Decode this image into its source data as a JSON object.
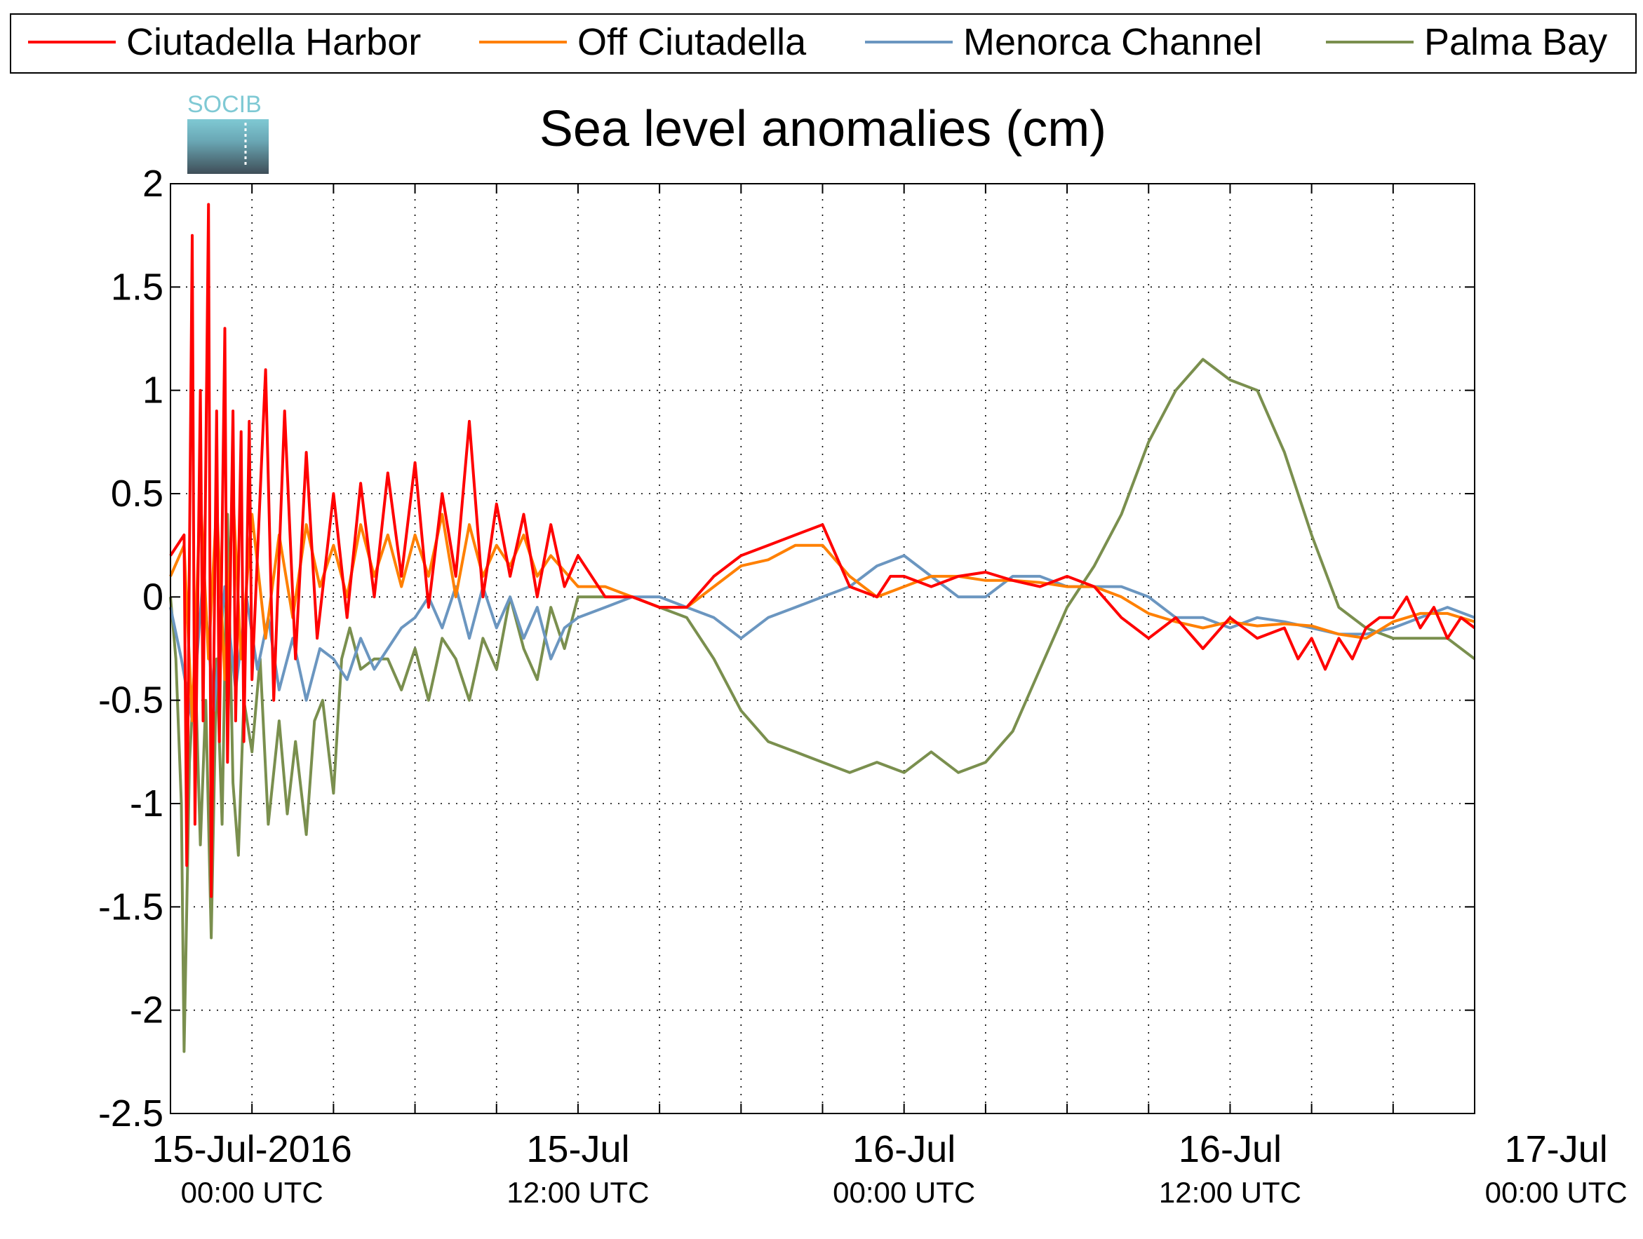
{
  "chart_data": {
    "type": "line",
    "title": "Sea level anomalies (cm)",
    "logo_text": "SOCIB",
    "xlabel": "",
    "ylabel": "",
    "xlim_hours": [
      -3,
      45
    ],
    "ylim": [
      -2.5,
      2
    ],
    "yticks": [
      -2.5,
      -2,
      -1.5,
      -1,
      -0.5,
      0,
      0.5,
      1,
      1.5,
      2
    ],
    "ytick_labels": [
      "-2.5",
      "-2",
      "-1.5",
      "-1",
      "-0.5",
      "0",
      "0.5",
      "1",
      "1.5",
      "2"
    ],
    "xticks_hours": [
      -3,
      0,
      3,
      6,
      9,
      12,
      15,
      18,
      21,
      24,
      27,
      30,
      33,
      36,
      39,
      42,
      45
    ],
    "xtick_labels": [
      {
        "hour": 0,
        "date": "15-Jul-2016",
        "time": "00:00 UTC"
      },
      {
        "hour": 12,
        "date": "15-Jul",
        "time": "12:00 UTC"
      },
      {
        "hour": 24,
        "date": "16-Jul",
        "time": "00:00 UTC"
      },
      {
        "hour": 36,
        "date": "16-Jul",
        "time": "12:00 UTC"
      },
      {
        "hour": 48,
        "date": "17-Jul",
        "time": "00:00 UTC"
      }
    ],
    "grid": true,
    "legend_position": "top",
    "series": [
      {
        "name": "Ciutadella Harbor",
        "color": "#ff0000",
        "x": [
          -3,
          -2.5,
          -2.4,
          -2.2,
          -2.1,
          -1.9,
          -1.8,
          -1.6,
          -1.5,
          -1.3,
          -1.2,
          -1.0,
          -0.9,
          -0.7,
          -0.6,
          -0.4,
          -0.3,
          -0.1,
          0,
          0.5,
          0.8,
          1.2,
          1.6,
          2.0,
          2.4,
          3,
          3.5,
          4,
          4.5,
          5,
          5.5,
          6,
          6.5,
          7,
          7.5,
          8,
          8.5,
          9,
          9.5,
          10,
          10.5,
          11,
          11.5,
          12,
          13,
          14,
          15,
          16,
          17,
          18,
          19,
          20,
          21,
          22,
          23,
          23.5,
          24,
          25,
          26,
          27,
          28,
          29,
          30,
          31,
          32,
          33,
          34,
          35,
          36,
          37,
          38,
          38.5,
          39,
          39.5,
          40,
          40.5,
          41,
          41.5,
          42,
          42.5,
          43,
          43.5,
          44,
          44.5,
          45
        ],
        "values": [
          0.2,
          0.3,
          -1.3,
          1.75,
          -1.1,
          1.0,
          -0.6,
          1.9,
          -1.45,
          0.9,
          -0.7,
          1.3,
          -0.8,
          0.9,
          -0.6,
          0.8,
          -0.7,
          0.85,
          -0.4,
          1.1,
          -0.5,
          0.9,
          -0.3,
          0.7,
          -0.2,
          0.5,
          -0.1,
          0.55,
          0.0,
          0.6,
          0.1,
          0.65,
          -0.05,
          0.5,
          0.1,
          0.85,
          0.0,
          0.45,
          0.1,
          0.4,
          0.0,
          0.35,
          0.05,
          0.2,
          0.0,
          0.0,
          -0.05,
          -0.05,
          0.1,
          0.2,
          0.25,
          0.3,
          0.35,
          0.05,
          0.0,
          0.1,
          0.1,
          0.05,
          0.1,
          0.12,
          0.08,
          0.05,
          0.1,
          0.05,
          -0.1,
          -0.2,
          -0.1,
          -0.25,
          -0.1,
          -0.2,
          -0.15,
          -0.3,
          -0.2,
          -0.35,
          -0.2,
          -0.3,
          -0.15,
          -0.1,
          -0.1,
          0.0,
          -0.15,
          -0.05,
          -0.2,
          -0.1,
          -0.15
        ]
      },
      {
        "name": "Off Ciutadella",
        "color": "#ff8000",
        "x": [
          -3,
          -2.5,
          -2.2,
          -1.9,
          -1.6,
          -1.3,
          -1.0,
          -0.7,
          -0.4,
          0,
          0.5,
          1,
          1.5,
          2,
          2.5,
          3,
          3.5,
          4,
          4.5,
          5,
          5.5,
          6,
          6.5,
          7,
          7.5,
          8,
          8.5,
          9,
          9.5,
          10,
          10.5,
          11,
          12,
          13,
          14,
          15,
          16,
          17,
          18,
          19,
          20,
          21,
          22,
          23,
          24,
          25,
          26,
          27,
          28,
          29,
          30,
          31,
          32,
          33,
          34,
          35,
          36,
          37,
          38,
          39,
          40,
          41,
          42,
          43,
          44,
          45
        ],
        "values": [
          0.1,
          0.25,
          -0.6,
          0.5,
          -0.3,
          0.45,
          -0.4,
          0.5,
          -0.3,
          0.4,
          -0.2,
          0.3,
          -0.1,
          0.35,
          0.05,
          0.25,
          0.0,
          0.35,
          0.1,
          0.3,
          0.05,
          0.3,
          0.1,
          0.4,
          0.0,
          0.35,
          0.1,
          0.25,
          0.15,
          0.3,
          0.1,
          0.2,
          0.05,
          0.05,
          0.0,
          -0.05,
          -0.05,
          0.05,
          0.15,
          0.18,
          0.25,
          0.25,
          0.1,
          0.0,
          0.05,
          0.1,
          0.1,
          0.08,
          0.08,
          0.07,
          0.05,
          0.05,
          0.0,
          -0.08,
          -0.12,
          -0.15,
          -0.12,
          -0.14,
          -0.13,
          -0.14,
          -0.18,
          -0.2,
          -0.12,
          -0.08,
          -0.08,
          -0.12
        ]
      },
      {
        "name": "Menorca Channel",
        "color": "#6b96c0",
        "x": [
          -3,
          -2.6,
          -2.2,
          -1.8,
          -1.4,
          -1.0,
          -0.6,
          -0.2,
          0.2,
          0.6,
          1,
          1.5,
          2,
          2.5,
          3,
          3.5,
          4,
          4.5,
          5,
          5.5,
          6,
          6.5,
          7,
          7.5,
          8,
          8.5,
          9,
          9.5,
          10,
          10.5,
          11,
          11.5,
          12,
          13,
          14,
          15,
          16,
          17,
          18,
          19,
          20,
          21,
          22,
          23,
          24,
          25,
          26,
          27,
          28,
          29,
          30,
          31,
          32,
          33,
          34,
          35,
          36,
          37,
          38,
          39,
          40,
          41,
          42,
          43,
          44,
          45
        ],
        "values": [
          -0.05,
          -0.3,
          -0.6,
          0.1,
          -0.55,
          0.05,
          -0.45,
          0.0,
          -0.35,
          -0.1,
          -0.45,
          -0.2,
          -0.5,
          -0.25,
          -0.3,
          -0.4,
          -0.2,
          -0.35,
          -0.25,
          -0.15,
          -0.1,
          0.0,
          -0.15,
          0.05,
          -0.2,
          0.05,
          -0.15,
          0.0,
          -0.2,
          -0.05,
          -0.3,
          -0.15,
          -0.1,
          -0.05,
          0.0,
          0.0,
          -0.05,
          -0.1,
          -0.2,
          -0.1,
          -0.05,
          0.0,
          0.05,
          0.15,
          0.2,
          0.1,
          0.0,
          0.0,
          0.1,
          0.1,
          0.05,
          0.05,
          0.05,
          0.0,
          -0.1,
          -0.1,
          -0.15,
          -0.1,
          -0.12,
          -0.15,
          -0.18,
          -0.18,
          -0.15,
          -0.1,
          -0.05,
          -0.1
        ]
      },
      {
        "name": "Palma Bay",
        "color": "#7a8f4e",
        "x": [
          -3,
          -2.8,
          -2.6,
          -2.5,
          -2.3,
          -2.1,
          -1.9,
          -1.7,
          -1.5,
          -1.3,
          -1.1,
          -0.9,
          -0.7,
          -0.5,
          -0.3,
          0,
          0.3,
          0.6,
          1,
          1.3,
          1.6,
          2,
          2.3,
          2.6,
          3,
          3.3,
          3.6,
          4,
          4.5,
          5,
          5.5,
          6,
          6.5,
          7,
          7.5,
          8,
          8.5,
          9,
          9.5,
          10,
          10.5,
          11,
          11.5,
          12,
          13,
          14,
          15,
          16,
          17,
          18,
          19,
          20,
          21,
          22,
          23,
          24,
          25,
          26,
          27,
          28,
          29,
          30,
          31,
          32,
          33,
          34,
          35,
          36,
          37,
          38,
          39,
          40,
          41,
          42,
          43,
          44,
          45
        ],
        "values": [
          0.0,
          -0.3,
          -1.0,
          -2.2,
          -0.8,
          -0.3,
          -1.2,
          -0.5,
          -1.65,
          -0.3,
          -1.1,
          0.4,
          -0.9,
          -1.25,
          -0.5,
          -0.75,
          -0.3,
          -1.1,
          -0.6,
          -1.05,
          -0.7,
          -1.15,
          -0.6,
          -0.5,
          -0.95,
          -0.3,
          -0.15,
          -0.35,
          -0.3,
          -0.3,
          -0.45,
          -0.25,
          -0.5,
          -0.2,
          -0.3,
          -0.5,
          -0.2,
          -0.35,
          0.0,
          -0.25,
          -0.4,
          -0.05,
          -0.25,
          0.0,
          0.0,
          0.0,
          -0.05,
          -0.1,
          -0.3,
          -0.55,
          -0.7,
          -0.75,
          -0.8,
          -0.85,
          -0.8,
          -0.85,
          -0.75,
          -0.85,
          -0.8,
          -0.65,
          -0.35,
          -0.05,
          0.15,
          0.4,
          0.75,
          1.0,
          1.15,
          1.05,
          1.0,
          0.7,
          0.3,
          -0.05,
          -0.15,
          -0.2,
          -0.2,
          -0.2,
          -0.3
        ]
      }
    ]
  }
}
